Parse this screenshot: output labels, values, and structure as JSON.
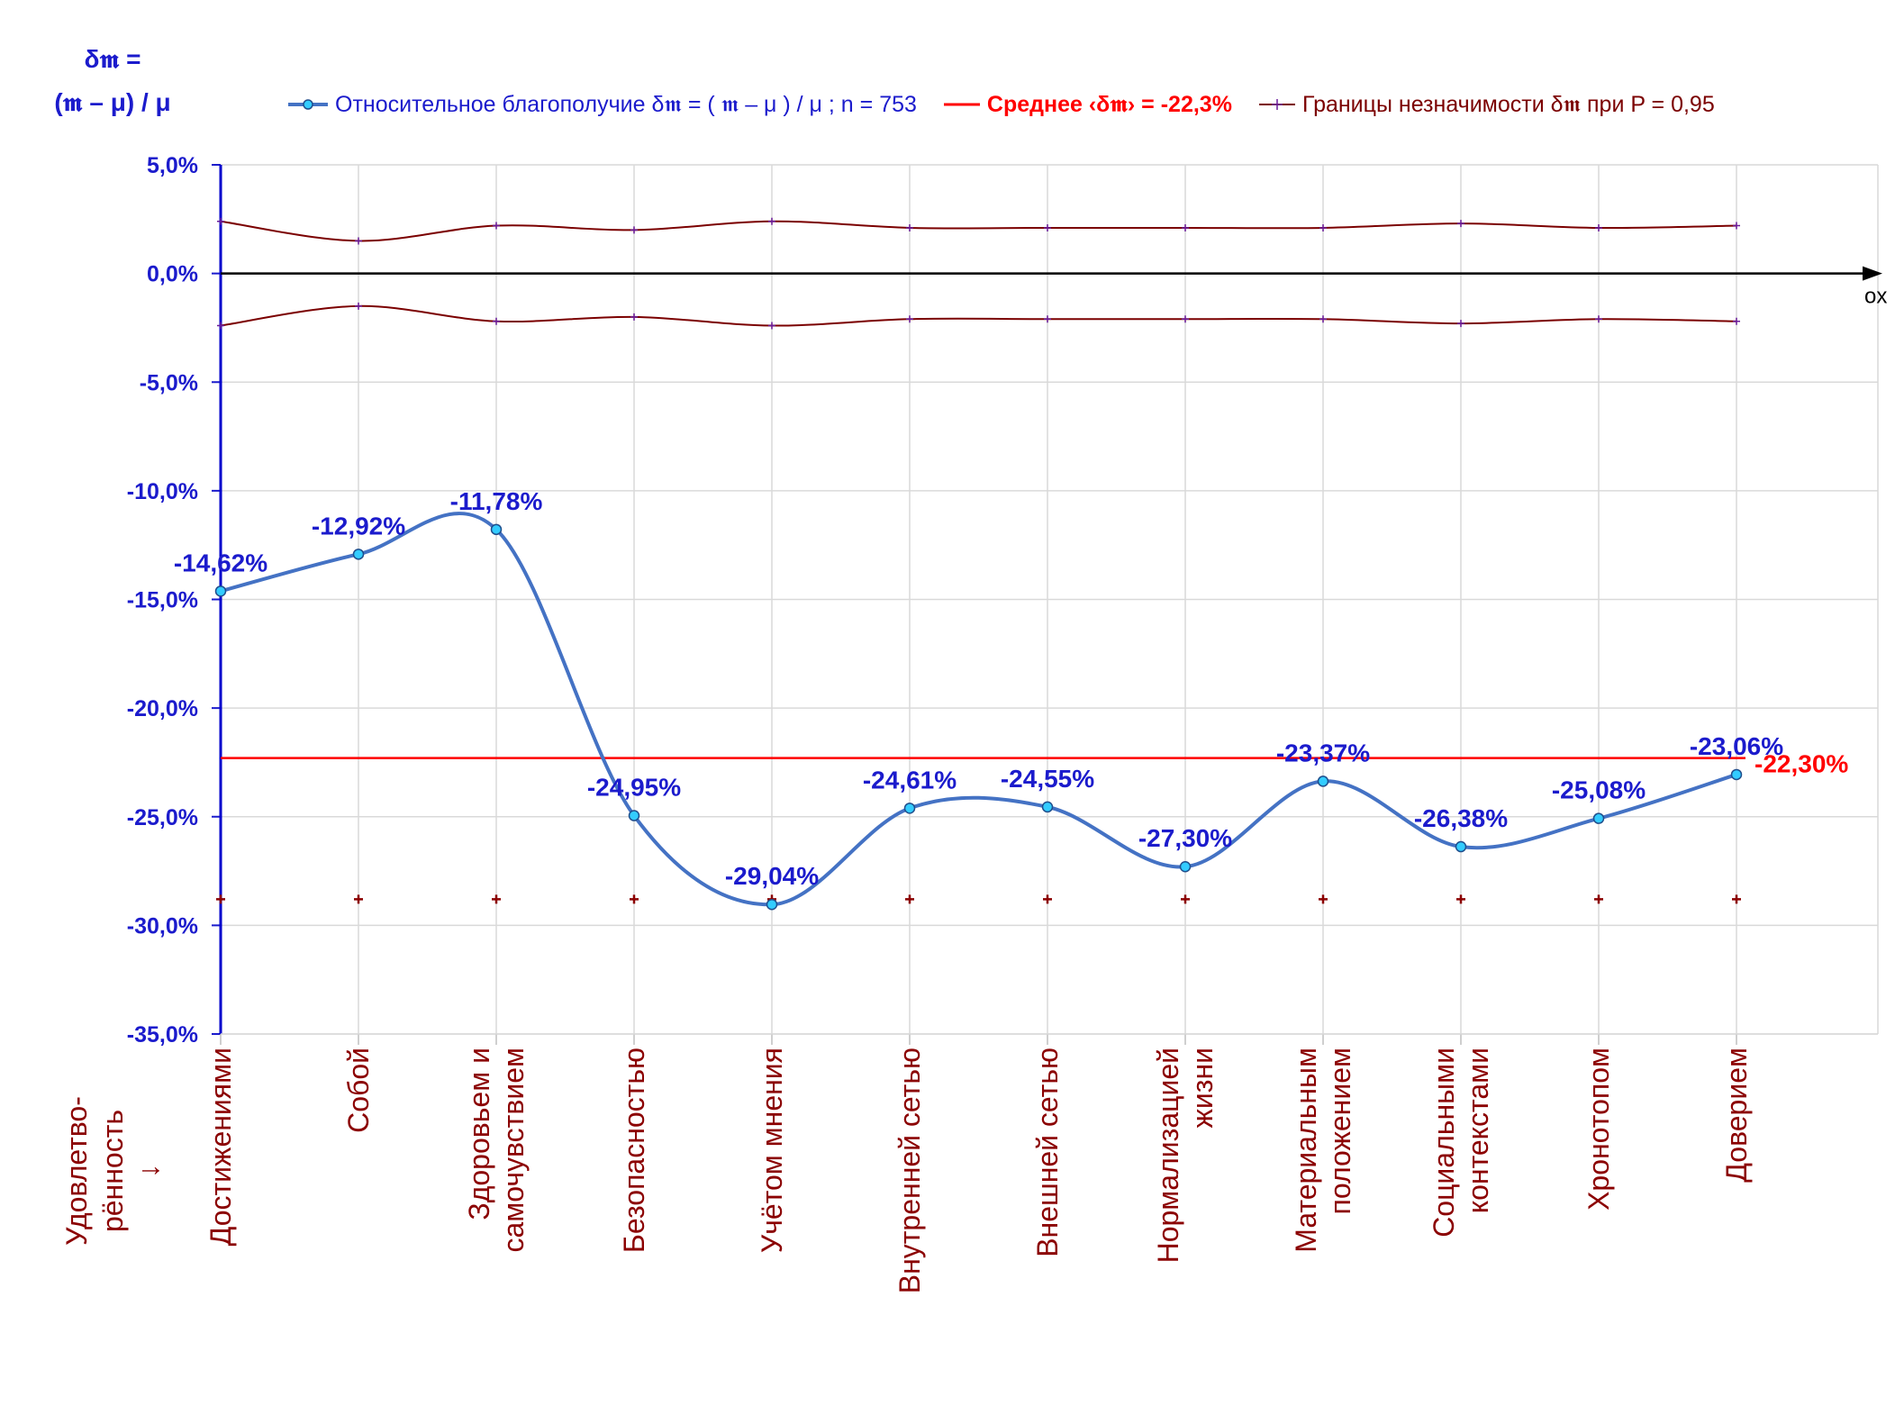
{
  "y_title": {
    "line1": "δ𝖒 =",
    "line2": "(𝖒 – μ) / μ"
  },
  "legend": {
    "series": "Относительное благополучие δ𝖒 = ( 𝖒 – μ ) / μ ; n = 753",
    "mean": "Среднее ‹δ𝖒› = -22,3%",
    "bounds": "Границы незначимости δ𝖒 при P = 0,95"
  },
  "x_caption": {
    "line1": "Удовлетво-",
    "line2": "рённость",
    "arrow": "↓"
  },
  "axis_end_label": "ox",
  "mean_label": "-22,30%",
  "colors": {
    "series": "#4472c4",
    "marker_fill": "#33ccff",
    "mean": "#ff0000",
    "bounds": "#7b0000",
    "label": "#1b1bcc",
    "category": "#8b0000"
  },
  "chart_data": {
    "type": "line",
    "categories": [
      [
        "Достижениями"
      ],
      [
        "Собой"
      ],
      [
        "Здоровьем и",
        "самочувствием"
      ],
      [
        "Безопасностью"
      ],
      [
        "Учётом мнения"
      ],
      [
        "Внутренней сетью"
      ],
      [
        "Внешней сетью"
      ],
      [
        "Нормализацией",
        "жизни"
      ],
      [
        "Материальным",
        "положением"
      ],
      [
        "Социальными",
        "контекстами"
      ],
      [
        "Хронотопом"
      ],
      [
        "Доверием"
      ]
    ],
    "series": [
      {
        "name": "Относительное благополучие δ𝖒 = ( 𝖒 – μ ) / μ ; n = 753",
        "values": [
          -14.62,
          -12.92,
          -11.78,
          -24.95,
          -29.04,
          -24.61,
          -24.55,
          -27.3,
          -23.37,
          -26.38,
          -25.08,
          -23.06
        ],
        "labels": [
          "-14,62%",
          "-12,92%",
          "-11,78%",
          "-24,95%",
          "-29,04%",
          "-24,61%",
          "-24,55%",
          "-27,30%",
          "-23,37%",
          "-26,38%",
          "-25,08%",
          "-23,06%"
        ]
      },
      {
        "name": "Среднее ‹δ𝖒› = -22,3%",
        "value": -22.3
      },
      {
        "name": "Границы незначимости δ𝖒 при P = 0,95",
        "upper": [
          2.4,
          1.5,
          2.2,
          2.0,
          2.4,
          2.1,
          2.1,
          2.1,
          2.1,
          2.3,
          2.1,
          2.2
        ],
        "lower": [
          -2.4,
          -1.5,
          -2.2,
          -2.0,
          -2.4,
          -2.1,
          -2.1,
          -2.1,
          -2.1,
          -2.3,
          -2.1,
          -2.2
        ]
      }
    ],
    "bottom_markers_value": -28.8,
    "ylim": [
      -35,
      5
    ],
    "yticks": [
      5,
      0,
      -5,
      -10,
      -15,
      -20,
      -25,
      -30,
      -35
    ],
    "ytick_labels": [
      "5,0%",
      "0,0%",
      "-5,0%",
      "-10,0%",
      "-15,0%",
      "-20,0%",
      "-25,0%",
      "-30,0%",
      "-35,0%"
    ],
    "grid": true,
    "legend_position": "top"
  }
}
